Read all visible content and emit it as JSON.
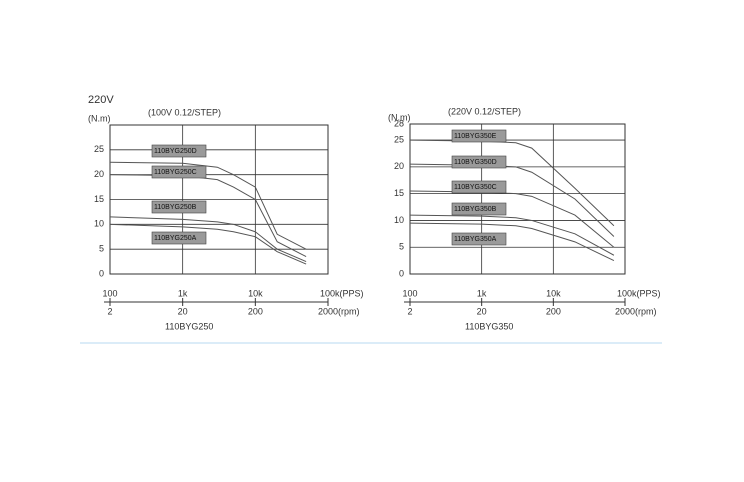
{
  "page_title": "220V",
  "chart_data": [
    {
      "type": "line",
      "subtitle": "(100V 0.12/STEP)",
      "ylabel": "(N.m)",
      "caption": "110BYG250",
      "log_x": true,
      "grid": true,
      "xlim": [
        100,
        100000
      ],
      "xticks": [
        100,
        {
          "value": 1000,
          "label": "1k"
        },
        {
          "value": 10000,
          "label": "10k"
        },
        {
          "value": 100000,
          "label": "100k(PPS)"
        }
      ],
      "x2lim": [
        2,
        2000
      ],
      "x2ticks": [
        2,
        20,
        200,
        {
          "value": 2000,
          "label": "2000(rpm)"
        }
      ],
      "ylim": [
        0,
        30
      ],
      "yticks": [
        0,
        5,
        10,
        15,
        20,
        25
      ],
      "x": [
        100,
        1000,
        3000,
        5000,
        10000,
        20000,
        50000
      ],
      "series": [
        {
          "name": "110BYG250D",
          "color": "#555555",
          "values": [
            22.5,
            22.3,
            21.5,
            20,
            17.5,
            8,
            5
          ]
        },
        {
          "name": "110BYG250C",
          "color": "#555555",
          "values": [
            20,
            19.8,
            19,
            17.5,
            15,
            6.5,
            3.5
          ]
        },
        {
          "name": "110BYG250B",
          "color": "#555555",
          "values": [
            11.5,
            11,
            10.5,
            10,
            8.5,
            5,
            2.5
          ]
        },
        {
          "name": "110BYG250A",
          "color": "#555555",
          "values": [
            10,
            9.5,
            9,
            8.5,
            7.5,
            4.5,
            2
          ]
        }
      ]
    },
    {
      "type": "line",
      "subtitle": "(220V 0.12/STEP)",
      "ylabel": "(N.m)",
      "caption": "110BYG350",
      "log_x": true,
      "grid": true,
      "xlim": [
        100,
        100000
      ],
      "xticks": [
        100,
        {
          "value": 1000,
          "label": "1k"
        },
        {
          "value": 10000,
          "label": "10k"
        },
        {
          "value": 100000,
          "label": "100k(PPS)"
        }
      ],
      "x2lim": [
        2,
        2000
      ],
      "x2ticks": [
        2,
        20,
        200,
        {
          "value": 2000,
          "label": "2000(rpm)"
        }
      ],
      "ylim": [
        0,
        28
      ],
      "yticks": [
        0,
        5,
        10,
        15,
        20,
        25,
        28
      ],
      "x": [
        100,
        1000,
        3000,
        5000,
        20000,
        70000
      ],
      "series": [
        {
          "name": "110BYG350E",
          "color": "#555555",
          "values": [
            25,
            24.8,
            24.5,
            23.5,
            16,
            9
          ]
        },
        {
          "name": "110BYG350D",
          "color": "#555555",
          "values": [
            20.5,
            20.3,
            20,
            19,
            14,
            7
          ]
        },
        {
          "name": "110BYG350C",
          "color": "#555555",
          "values": [
            15.5,
            15.3,
            15,
            14.5,
            11,
            5
          ]
        },
        {
          "name": "110BYG350B",
          "color": "#555555",
          "values": [
            11,
            10.8,
            10.5,
            10,
            7.5,
            3.5
          ]
        },
        {
          "name": "110BYG350A",
          "color": "#555555",
          "values": [
            9.5,
            9.3,
            9,
            8.5,
            6,
            2.5
          ]
        }
      ]
    }
  ]
}
